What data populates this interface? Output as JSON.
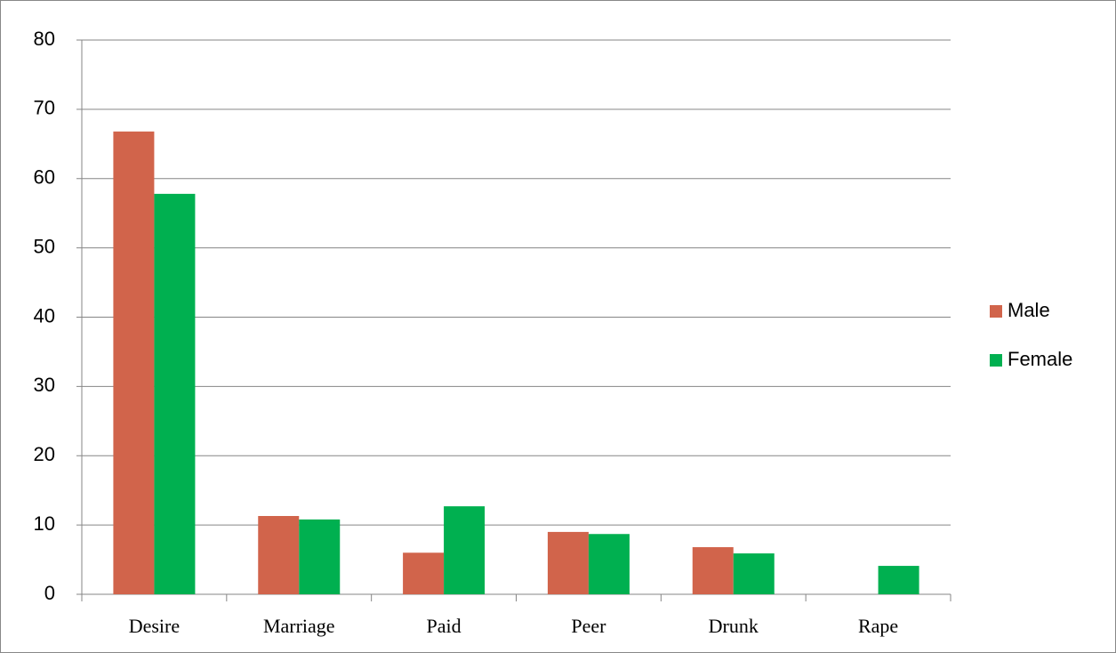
{
  "chart_data": {
    "type": "bar",
    "categories": [
      "Desire",
      "Marriage",
      "Paid",
      "Peer",
      "Drunk",
      "Rape"
    ],
    "series": [
      {
        "name": "Male",
        "color": "#d1644b",
        "values": [
          66.8,
          11.3,
          6.0,
          9.0,
          6.8,
          0
        ]
      },
      {
        "name": "Female",
        "color": "#00b050",
        "values": [
          57.8,
          10.8,
          12.7,
          8.7,
          5.9,
          4.1
        ]
      }
    ],
    "ylim": [
      0,
      80
    ],
    "yticks": [
      0,
      10,
      20,
      30,
      40,
      50,
      60,
      70,
      80
    ],
    "grid": true,
    "legend": "right"
  }
}
